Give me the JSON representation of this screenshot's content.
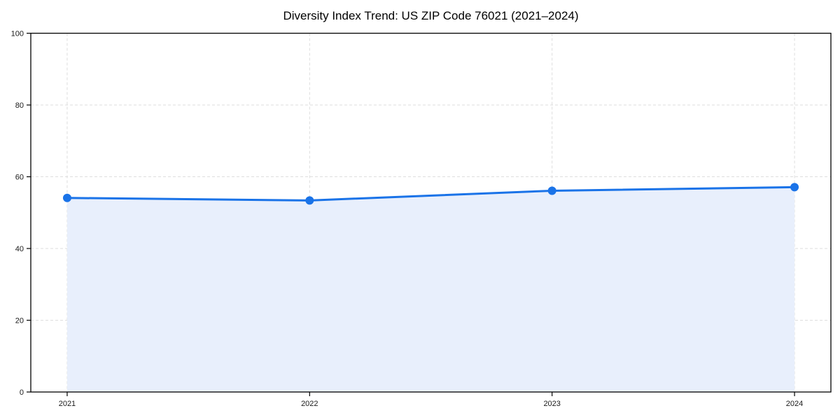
{
  "chart_data": {
    "type": "line",
    "title": "Diversity Index Trend: US ZIP Code 76021 (2021–2024)",
    "x": [
      2021,
      2022,
      2023,
      2024
    ],
    "x_tick_labels": [
      "2021",
      "2022",
      "2023",
      "2024"
    ],
    "series": [
      {
        "name": "Diversity Index",
        "values": [
          54.1,
          53.4,
          56.1,
          57.1
        ]
      }
    ],
    "xlabel": "",
    "ylabel": "",
    "ylim": [
      0,
      100
    ],
    "y_ticks": [
      0,
      20,
      40,
      60,
      80,
      100
    ],
    "grid": "dashed",
    "legend_position": "none",
    "area_fill": true,
    "markers": "circle",
    "colors": {
      "line": "#1a73e8",
      "marker": "#1a73e8",
      "area": "#e8effc",
      "grid": "#dddddd",
      "axis": "#000000",
      "background": "#ffffff",
      "text": "#000000"
    }
  }
}
